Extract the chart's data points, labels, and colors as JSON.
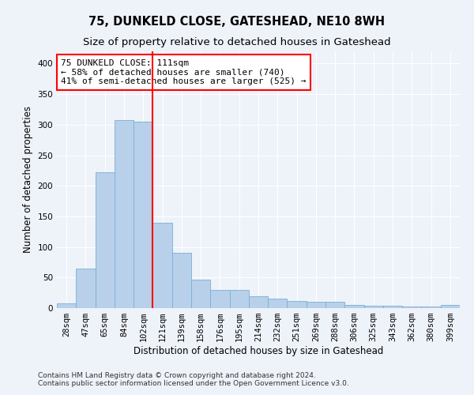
{
  "title": "75, DUNKELD CLOSE, GATESHEAD, NE10 8WH",
  "subtitle": "Size of property relative to detached houses in Gateshead",
  "xlabel": "Distribution of detached houses by size in Gateshead",
  "ylabel": "Number of detached properties",
  "categories": [
    "28sqm",
    "47sqm",
    "65sqm",
    "84sqm",
    "102sqm",
    "121sqm",
    "139sqm",
    "158sqm",
    "176sqm",
    "195sqm",
    "214sqm",
    "232sqm",
    "251sqm",
    "269sqm",
    "288sqm",
    "306sqm",
    "325sqm",
    "343sqm",
    "362sqm",
    "380sqm",
    "399sqm"
  ],
  "values": [
    8,
    65,
    222,
    307,
    305,
    140,
    90,
    47,
    30,
    30,
    19,
    15,
    11,
    10,
    10,
    5,
    4,
    4,
    3,
    3,
    5
  ],
  "bar_color": "#b8d0ea",
  "bar_edge_color": "#7aafd4",
  "vline_x_index": 4.5,
  "vline_color": "red",
  "annotation_line1": "75 DUNKELD CLOSE: 111sqm",
  "annotation_line2": "← 58% of detached houses are smaller (740)",
  "annotation_line3": "41% of semi-detached houses are larger (525) →",
  "annotation_box_color": "white",
  "annotation_box_edge_color": "red",
  "ylim": [
    0,
    420
  ],
  "yticks": [
    0,
    50,
    100,
    150,
    200,
    250,
    300,
    350,
    400
  ],
  "footnote1": "Contains HM Land Registry data © Crown copyright and database right 2024.",
  "footnote2": "Contains public sector information licensed under the Open Government Licence v3.0.",
  "background_color": "#eef2f9",
  "grid_color": "white",
  "title_fontsize": 10.5,
  "subtitle_fontsize": 9.5,
  "xlabel_fontsize": 8.5,
  "ylabel_fontsize": 8.5,
  "tick_fontsize": 7.5,
  "annotation_fontsize": 8,
  "footnote_fontsize": 6.5
}
